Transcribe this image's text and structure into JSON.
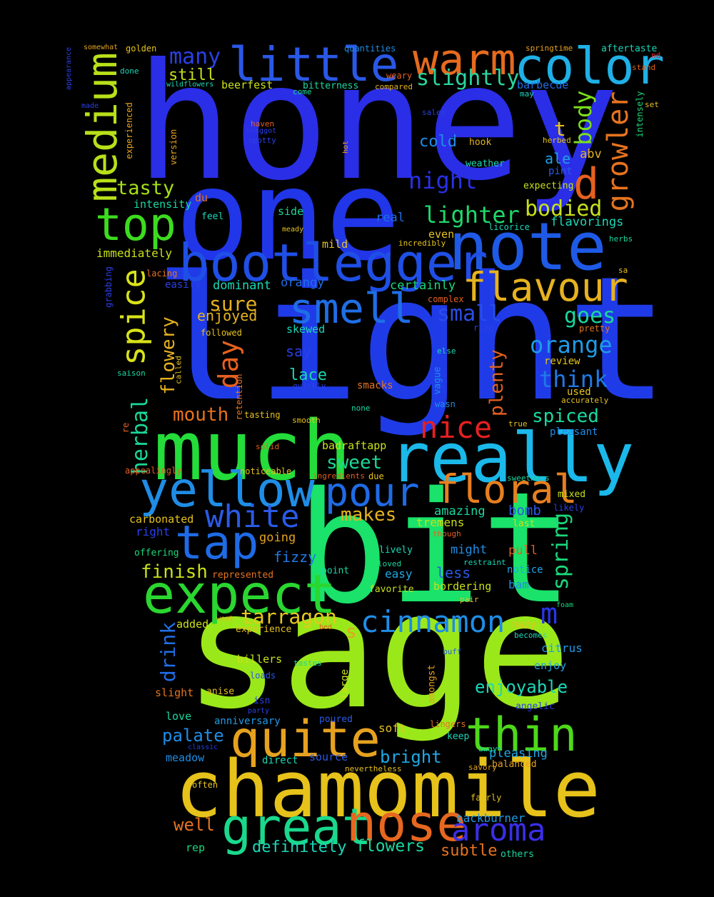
{
  "words": [
    {
      "text": "honey",
      "color": "#2a2ee6"
    },
    {
      "text": "one",
      "color": "#2036e8"
    },
    {
      "text": "light",
      "color": "#1f3be8"
    },
    {
      "text": "sage",
      "color": "#9be81a"
    },
    {
      "text": "bit",
      "color": "#1ae26a"
    },
    {
      "text": "much",
      "color": "#24dd3a"
    },
    {
      "text": "really",
      "color": "#1bb8ea"
    },
    {
      "text": "chamomile",
      "color": "#e6c21a"
    },
    {
      "text": "note",
      "color": "#1f5ae6"
    },
    {
      "text": "bootlegger",
      "color": "#1f4fe6"
    },
    {
      "text": "yellow",
      "color": "#1f8de6"
    },
    {
      "text": "expect",
      "color": "#2ad630"
    },
    {
      "text": "little",
      "color": "#2a58e6"
    },
    {
      "text": "warm",
      "color": "#e66a1f"
    },
    {
      "text": "color",
      "color": "#1fb0e6"
    },
    {
      "text": "medium",
      "color": "#b8e01a"
    },
    {
      "text": "top",
      "color": "#3ddb1f"
    },
    {
      "text": "smell",
      "color": "#1f6ee6"
    },
    {
      "text": "flavour",
      "color": "#e6b21f"
    },
    {
      "text": "great",
      "color": "#1ad88c"
    },
    {
      "text": "nose",
      "color": "#e6671f"
    },
    {
      "text": "quite",
      "color": "#e6a21f"
    },
    {
      "text": "thin",
      "color": "#4ed81a"
    },
    {
      "text": "tap",
      "color": "#1f6be6"
    },
    {
      "text": "floral",
      "color": "#e67f1f"
    },
    {
      "text": "pour",
      "color": "#1f6be6"
    },
    {
      "text": "spice",
      "color": "#d8e21a"
    },
    {
      "text": "aroma",
      "color": "#3a2ee6"
    },
    {
      "text": "white",
      "color": "#2a5ae6"
    },
    {
      "text": "cinnamon",
      "color": "#1f8de6"
    },
    {
      "text": "nice",
      "color": "#e62020"
    },
    {
      "text": "growler",
      "color": "#e6731f"
    },
    {
      "text": "d",
      "color": "#e6601f"
    },
    {
      "text": "day",
      "color": "#e6601f"
    },
    {
      "text": "many",
      "color": "#2a40e6"
    },
    {
      "text": "slightly",
      "color": "#2ad6a0"
    },
    {
      "text": "night",
      "color": "#2a30e6"
    },
    {
      "text": "lighter",
      "color": "#1ed86a"
    },
    {
      "text": "bodied",
      "color": "#c8e01a"
    },
    {
      "text": "body",
      "color": "#7be01a"
    },
    {
      "text": "orange",
      "color": "#1f9be6"
    },
    {
      "text": "goes",
      "color": "#1ad89c"
    },
    {
      "text": "think",
      "color": "#1f7ae6"
    },
    {
      "text": "small",
      "color": "#2a4ee6"
    },
    {
      "text": "sure",
      "color": "#e6b01f"
    },
    {
      "text": "tasty",
      "color": "#a6e01a"
    },
    {
      "text": "herbal",
      "color": "#1ad896"
    },
    {
      "text": "flowery",
      "color": "#e6b21f"
    },
    {
      "text": "spring",
      "color": "#1ad87a"
    },
    {
      "text": "m",
      "color": "#2a34e6"
    },
    {
      "text": "s",
      "color": "#e6a21f"
    },
    {
      "text": "tarragon",
      "color": "#e6c81f"
    },
    {
      "text": "finish",
      "color": "#c8e01a"
    },
    {
      "text": "mouth",
      "color": "#e6731f"
    },
    {
      "text": "sweet",
      "color": "#1ad896"
    },
    {
      "text": "makes",
      "color": "#e6b21f"
    },
    {
      "text": "spiced",
      "color": "#1ad8a0"
    },
    {
      "text": "plenty",
      "color": "#e6601f"
    },
    {
      "text": "drink",
      "color": "#1f6ee6"
    },
    {
      "text": "enjoyable",
      "color": "#1ad8b8"
    },
    {
      "text": "palate",
      "color": "#1f8de6"
    },
    {
      "text": "bright",
      "color": "#1fa8e6"
    },
    {
      "text": "well",
      "color": "#e6731f"
    },
    {
      "text": "definitely",
      "color": "#1ad8b8"
    },
    {
      "text": "flowers",
      "color": "#1ad8a0"
    },
    {
      "text": "subtle",
      "color": "#e6731f"
    },
    {
      "text": "t",
      "color": "#e6c21f"
    },
    {
      "text": "ale",
      "color": "#1fa0e6"
    },
    {
      "text": "cold",
      "color": "#1f8de6"
    },
    {
      "text": "still",
      "color": "#c8e01a"
    },
    {
      "text": "lace",
      "color": "#1ad8b0"
    },
    {
      "text": "say",
      "color": "#2a40e6"
    },
    {
      "text": "enjoyed",
      "color": "#e6b21f"
    },
    {
      "text": "dominant",
      "color": "#1ad8b8"
    },
    {
      "text": "orangy",
      "color": "#1f6ee6"
    },
    {
      "text": "certainly",
      "color": "#1ad87a"
    },
    {
      "text": "fizzy",
      "color": "#1f7ae6"
    },
    {
      "text": "going",
      "color": "#e6a21f"
    },
    {
      "text": "amazing",
      "color": "#1ad8a0"
    },
    {
      "text": "bomb",
      "color": "#2a5ae6"
    },
    {
      "text": "tremens",
      "color": "#c8e01a"
    },
    {
      "text": "right",
      "color": "#2a40e6"
    },
    {
      "text": "carbonated",
      "color": "#e6c21f"
    },
    {
      "text": "immediately",
      "color": "#c8e01a"
    },
    {
      "text": "real",
      "color": "#1f6ee6"
    },
    {
      "text": "side",
      "color": "#1ad896"
    },
    {
      "text": "mild",
      "color": "#e6c21f"
    },
    {
      "text": "even",
      "color": "#e6c21f"
    },
    {
      "text": "flavorings",
      "color": "#1ad8b8"
    },
    {
      "text": "abv",
      "color": "#e6b21f"
    },
    {
      "text": "pint",
      "color": "#2a5ae6"
    },
    {
      "text": "barbecue",
      "color": "#1f6ee6"
    },
    {
      "text": "hook",
      "color": "#e6b21f"
    },
    {
      "text": "weather",
      "color": "#1ad8b8"
    },
    {
      "text": "expecting",
      "color": "#c8e01a"
    },
    {
      "text": "beerfest",
      "color": "#c8e01a"
    },
    {
      "text": "bitterness",
      "color": "#1ad8a0"
    },
    {
      "text": "intensity",
      "color": "#1ad8a0"
    },
    {
      "text": "du",
      "color": "#e6731f"
    },
    {
      "text": "feel",
      "color": "#1ad8b8"
    },
    {
      "text": "review",
      "color": "#e6c21f"
    },
    {
      "text": "used",
      "color": "#e6c21f"
    },
    {
      "text": "pleasant",
      "color": "#1f8de6"
    },
    {
      "text": "pull",
      "color": "#e6601f"
    },
    {
      "text": "might",
      "color": "#1f8de6"
    },
    {
      "text": "less",
      "color": "#2a5ae6"
    },
    {
      "text": "easy",
      "color": "#1fa8e6"
    },
    {
      "text": "bordering",
      "color": "#c8e01a"
    },
    {
      "text": "notice",
      "color": "#1fa8e6"
    },
    {
      "text": "bam",
      "color": "#1f8de6"
    },
    {
      "text": "hazy",
      "color": "#e6c21f"
    },
    {
      "text": "citrus",
      "color": "#1f9be6"
    },
    {
      "text": "enjoy",
      "color": "#1fa8e6"
    },
    {
      "text": "pleasing",
      "color": "#1fa8e6"
    },
    {
      "text": "balanced",
      "color": "#e6a21f"
    },
    {
      "text": "added",
      "color": "#c8e01a"
    },
    {
      "text": "billers",
      "color": "#c8e01a"
    },
    {
      "text": "slight",
      "color": "#e6731f"
    },
    {
      "text": "anise",
      "color": "#e6c21f"
    },
    {
      "text": "love",
      "color": "#1ad8a0"
    },
    {
      "text": "anniversary",
      "color": "#1f9be6"
    },
    {
      "text": "meadow",
      "color": "#1f8de6"
    },
    {
      "text": "direct",
      "color": "#1ad8b8"
    },
    {
      "text": "source",
      "color": "#2a5ae6"
    },
    {
      "text": "soft",
      "color": "#e6c21f"
    },
    {
      "text": "rep",
      "color": "#1ad87a"
    },
    {
      "text": "backburner",
      "color": "#1f9be6"
    },
    {
      "text": "others",
      "color": "#1ad8a0"
    },
    {
      "text": "large",
      "color": "#c8e01a"
    },
    {
      "text": "amongst",
      "color": "#e6a21f"
    },
    {
      "text": "vague",
      "color": "#1f8de6"
    },
    {
      "text": "retention",
      "color": "#e6731f"
    },
    {
      "text": "smacks",
      "color": "#e6731f"
    },
    {
      "text": "badraftapp",
      "color": "#c8e01a"
    },
    {
      "text": "mixed",
      "color": "#c8e01a"
    },
    {
      "text": "likely",
      "color": "#2a40e6"
    },
    {
      "text": "last",
      "color": "#c8e01a"
    },
    {
      "text": "lively",
      "color": "#1ad8b8"
    },
    {
      "text": "favorite",
      "color": "#c8e01a"
    },
    {
      "text": "point",
      "color": "#1ad8a0"
    },
    {
      "text": "offering",
      "color": "#1ad87a"
    },
    {
      "text": "represented",
      "color": "#e6731f"
    },
    {
      "text": "experience",
      "color": "#e6c21f"
    },
    {
      "text": "went",
      "color": "#e6b21f"
    },
    {
      "text": "bed",
      "color": "#e6601f"
    },
    {
      "text": "isn",
      "color": "#2a40e6"
    },
    {
      "text": "loads",
      "color": "#2a5ae6"
    },
    {
      "text": "party",
      "color": "#2a40e6"
    },
    {
      "text": "poured",
      "color": "#2a5ae6"
    },
    {
      "text": "tastes",
      "color": "#1ad8a0"
    },
    {
      "text": "buff",
      "color": "#2a5ae6"
    },
    {
      "text": "angelic",
      "color": "#2a40e6"
    },
    {
      "text": "lingers",
      "color": "#e6731f"
    },
    {
      "text": "keep",
      "color": "#1ad8b8"
    },
    {
      "text": "away",
      "color": "#1ad8a0"
    },
    {
      "text": "savory",
      "color": "#e6a21f"
    },
    {
      "text": "nevertheless",
      "color": "#e6c21f"
    },
    {
      "text": "fairly",
      "color": "#e6c21f"
    },
    {
      "text": "often",
      "color": "#e6c21f"
    },
    {
      "text": "classic",
      "color": "#1f3be8"
    },
    {
      "text": "becomes",
      "color": "#1ad8b8"
    },
    {
      "text": "foam",
      "color": "#1ad87a"
    },
    {
      "text": "restraint",
      "color": "#1ad8b8"
    },
    {
      "text": "loved",
      "color": "#1ad8a0"
    },
    {
      "text": "pair",
      "color": "#e6c21f"
    },
    {
      "text": "though",
      "color": "#e6601f"
    },
    {
      "text": "sweetness",
      "color": "#1ad8a0"
    },
    {
      "text": "due",
      "color": "#e6c21f"
    },
    {
      "text": "ingredients",
      "color": "#e6601f"
    },
    {
      "text": "noticeable",
      "color": "#e6c21f"
    },
    {
      "text": "appealingly",
      "color": "#e6601f"
    },
    {
      "text": "solid",
      "color": "#e6601f"
    },
    {
      "text": "smooth",
      "color": "#e6c21f"
    },
    {
      "text": "tasting",
      "color": "#e6c21f"
    },
    {
      "text": "none",
      "color": "#1ad8a0"
    },
    {
      "text": "wasn",
      "color": "#1f8de6"
    },
    {
      "text": "true",
      "color": "#e6c21f"
    },
    {
      "text": "accurately",
      "color": "#e6c21f"
    },
    {
      "text": "re",
      "color": "#e6601f"
    },
    {
      "text": "quickly",
      "color": "#2a40e6"
    },
    {
      "text": "called",
      "color": "#e6c21f"
    },
    {
      "text": "saison",
      "color": "#1ad8a0"
    },
    {
      "text": "else",
      "color": "#1ad8b8"
    },
    {
      "text": "ring",
      "color": "#2a40e6"
    },
    {
      "text": "pretty",
      "color": "#e6731f"
    },
    {
      "text": "complex",
      "color": "#e6601f"
    },
    {
      "text": "followed",
      "color": "#e6c21f"
    },
    {
      "text": "skewed",
      "color": "#1ad8b8"
    },
    {
      "text": "easily",
      "color": "#2a40e6"
    },
    {
      "text": "grabbing",
      "color": "#2a40e6"
    },
    {
      "text": "lacing",
      "color": "#e6731f"
    },
    {
      "text": "herbs",
      "color": "#1ad8a0"
    },
    {
      "text": "sa",
      "color": "#e6c21f"
    },
    {
      "text": "licorice",
      "color": "#1ad8b8"
    },
    {
      "text": "incredibly",
      "color": "#e6c21f"
    },
    {
      "text": "meady",
      "color": "#e6c21f"
    },
    {
      "text": "herbed",
      "color": "#e6c21f"
    },
    {
      "text": "intensely",
      "color": "#1ad87a"
    },
    {
      "text": "set",
      "color": "#e6c21f"
    },
    {
      "text": "stand",
      "color": "#e6601f"
    },
    {
      "text": "nd",
      "color": "#e62020"
    },
    {
      "text": "aftertaste",
      "color": "#1ad8b8"
    },
    {
      "text": "springtime",
      "color": "#e6a21f"
    },
    {
      "text": "quantities",
      "color": "#1f8de6"
    },
    {
      "text": "weary",
      "color": "#e6601f"
    },
    {
      "text": "compared",
      "color": "#e6b21f"
    },
    {
      "text": "may",
      "color": "#1ad8b8"
    },
    {
      "text": "sales",
      "color": "#2a40e6"
    },
    {
      "text": "hot",
      "color": "#e6a21f"
    },
    {
      "text": "haven",
      "color": "#e6601f"
    },
    {
      "text": "braggot",
      "color": "#2a40e6"
    },
    {
      "text": "spotty",
      "color": "#2a40e6"
    },
    {
      "text": "version",
      "color": "#e6a21f"
    },
    {
      "text": "experienced",
      "color": "#e6a21f"
    },
    {
      "text": "made",
      "color": "#2a40e6"
    },
    {
      "text": "appearance",
      "color": "#2a40e6"
    },
    {
      "text": "done",
      "color": "#1ad8b8"
    },
    {
      "text": "somewhat",
      "color": "#e6a21f"
    },
    {
      "text": "golden",
      "color": "#e6c21f"
    },
    {
      "text": "wildflowers",
      "color": "#1ad8b8"
    },
    {
      "text": "come",
      "color": "#1ad8a0"
    }
  ]
}
